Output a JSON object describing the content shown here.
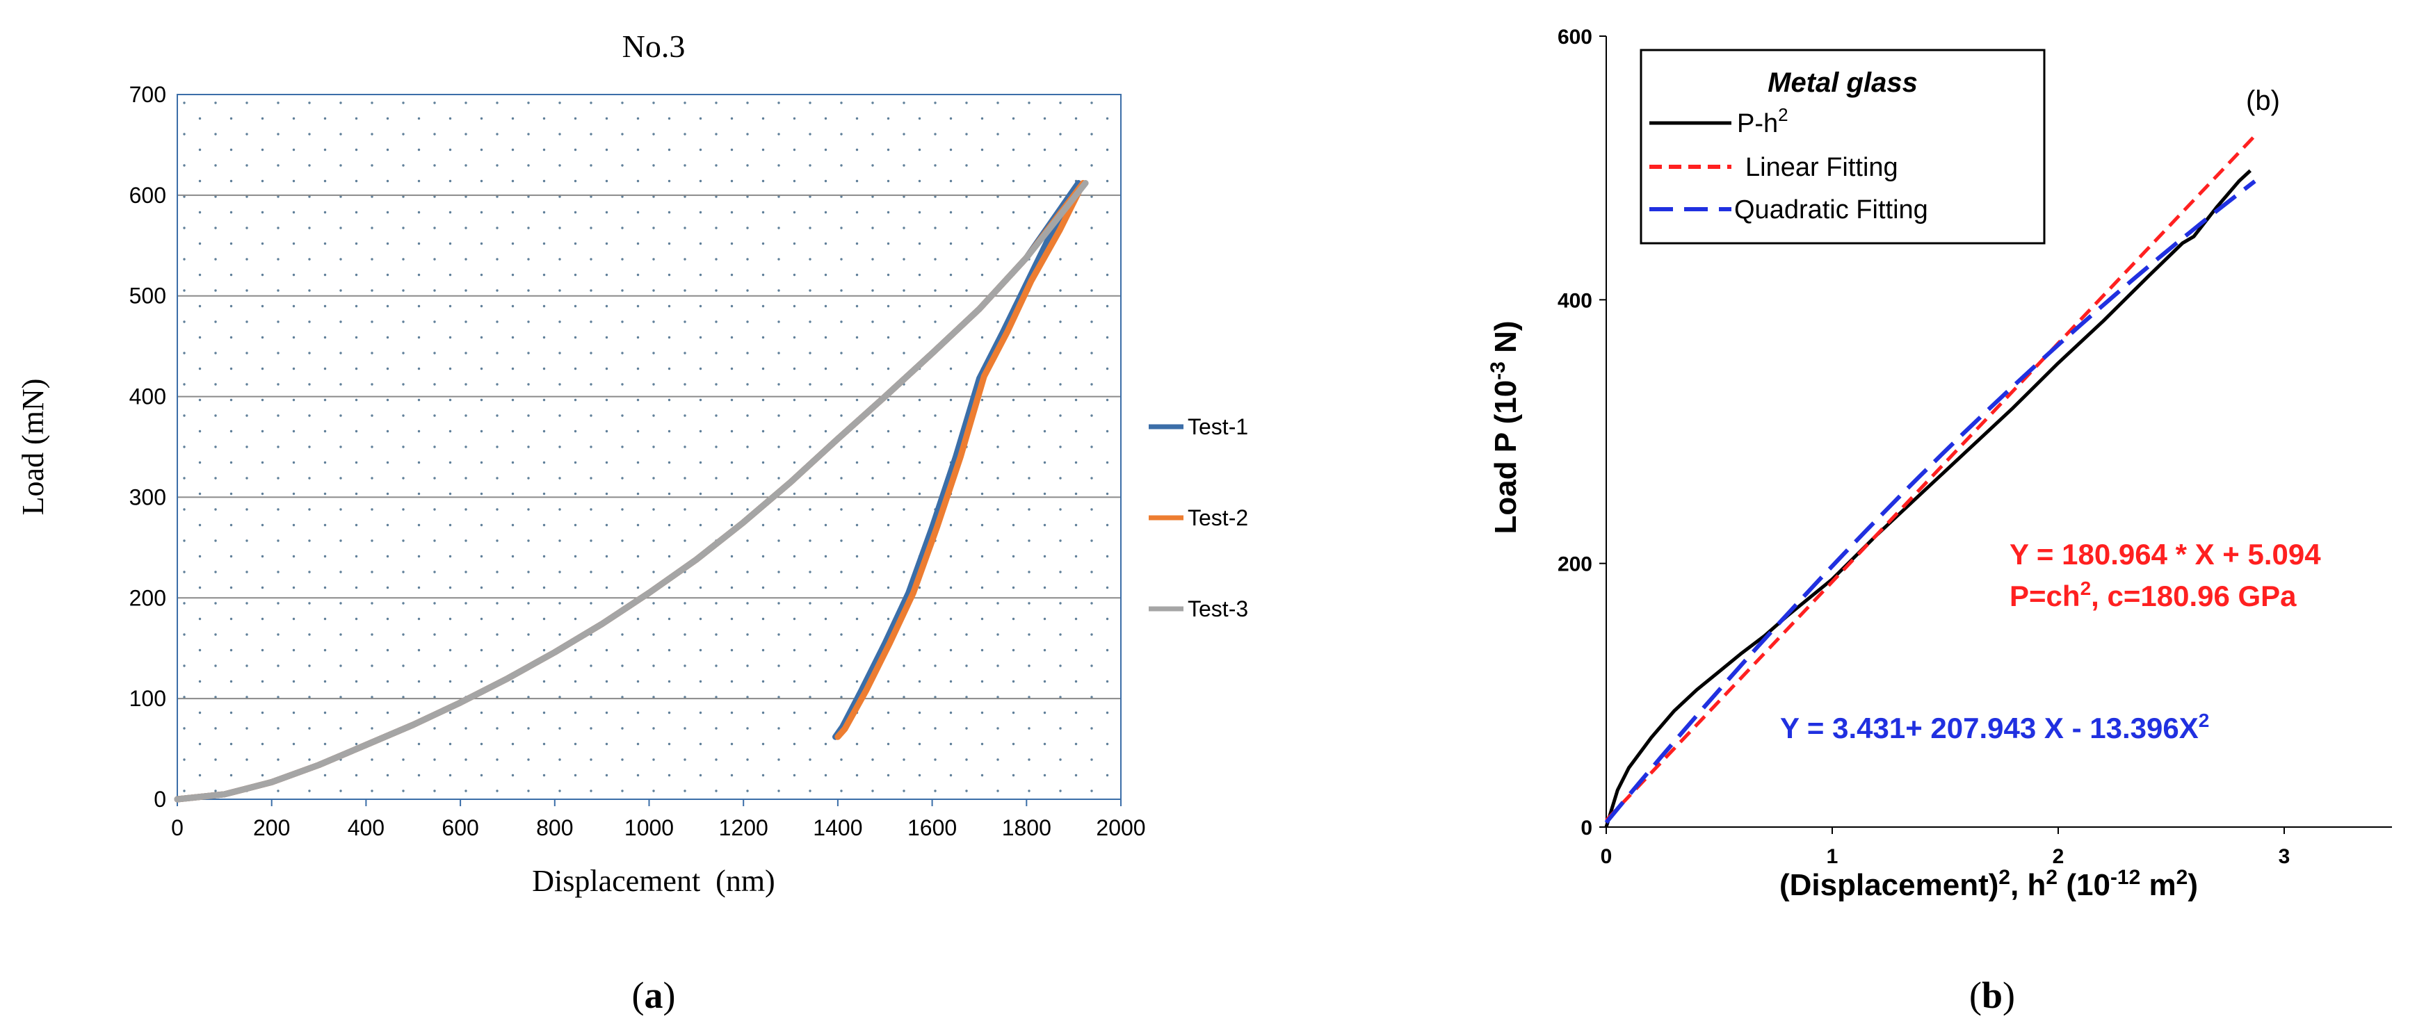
{
  "panel_a": {
    "caption_open": "(",
    "caption_letter": "a",
    "caption_close": ")",
    "chart_data": {
      "type": "line",
      "title": "No.3",
      "xlabel": "Displacement  (nm)",
      "ylabel": "Load (mN)",
      "xlim": [
        0,
        2000
      ],
      "ylim": [
        0,
        700
      ],
      "xticks": [
        0,
        200,
        400,
        600,
        800,
        1000,
        1200,
        1400,
        1600,
        1800,
        2000
      ],
      "yticks": [
        0,
        100,
        200,
        300,
        400,
        500,
        600,
        700
      ],
      "grid": "horizontal",
      "legend_position": "right",
      "series": [
        {
          "name": "Test-1",
          "color": "#3b6ea8",
          "points": [
            [
              0,
              0
            ],
            [
              100,
              5
            ],
            [
              200,
              17
            ],
            [
              300,
              34
            ],
            [
              400,
              54
            ],
            [
              500,
              74
            ],
            [
              600,
              96
            ],
            [
              700,
              120
            ],
            [
              800,
              146
            ],
            [
              900,
              174
            ],
            [
              1000,
              205
            ],
            [
              1100,
              238
            ],
            [
              1200,
              275
            ],
            [
              1300,
              315
            ],
            [
              1400,
              358
            ],
            [
              1500,
              400
            ],
            [
              1600,
              443
            ],
            [
              1700,
              487
            ],
            [
              1800,
              538
            ],
            [
              1910,
              612
            ],
            [
              1850,
              560
            ],
            [
              1800,
              512
            ],
            [
              1750,
              464
            ],
            [
              1700,
              418
            ],
            [
              1650,
              340
            ],
            [
              1600,
              270
            ],
            [
              1550,
              205
            ],
            [
              1500,
              155
            ],
            [
              1450,
              108
            ],
            [
              1410,
              72
            ],
            [
              1395,
              62
            ]
          ]
        },
        {
          "name": "Test-2",
          "color": "#ed7d31",
          "points": [
            [
              0,
              0
            ],
            [
              100,
              5
            ],
            [
              200,
              17
            ],
            [
              300,
              34
            ],
            [
              400,
              54
            ],
            [
              500,
              74
            ],
            [
              600,
              96
            ],
            [
              700,
              120
            ],
            [
              800,
              146
            ],
            [
              900,
              174
            ],
            [
              1000,
              205
            ],
            [
              1100,
              238
            ],
            [
              1200,
              275
            ],
            [
              1300,
              315
            ],
            [
              1400,
              358
            ],
            [
              1500,
              400
            ],
            [
              1600,
              443
            ],
            [
              1700,
              487
            ],
            [
              1800,
              538
            ],
            [
              1920,
              612
            ],
            [
              1870,
              565
            ],
            [
              1810,
              515
            ],
            [
              1760,
              465
            ],
            [
              1710,
              420
            ],
            [
              1660,
              340
            ],
            [
              1610,
              270
            ],
            [
              1560,
              205
            ],
            [
              1510,
              155
            ],
            [
              1460,
              108
            ],
            [
              1415,
              70
            ],
            [
              1400,
              62
            ]
          ]
        },
        {
          "name": "Test-3",
          "color": "#a5a5a5",
          "points": [
            [
              0,
              0
            ],
            [
              100,
              5
            ],
            [
              200,
              17
            ],
            [
              300,
              34
            ],
            [
              400,
              54
            ],
            [
              500,
              74
            ],
            [
              600,
              96
            ],
            [
              700,
              120
            ],
            [
              800,
              146
            ],
            [
              900,
              174
            ],
            [
              1000,
              205
            ],
            [
              1100,
              238
            ],
            [
              1200,
              275
            ],
            [
              1300,
              315
            ],
            [
              1400,
              358
            ],
            [
              1500,
              400
            ],
            [
              1600,
              443
            ],
            [
              1700,
              487
            ],
            [
              1800,
              538
            ],
            [
              1925,
              612
            ]
          ]
        }
      ]
    }
  },
  "panel_b": {
    "caption_open": "(",
    "caption_letter": "b",
    "caption_close": ")",
    "chart_data": {
      "type": "line",
      "title": "",
      "panel_tag": "(b)",
      "xlabel_parts": [
        "(Displacement)",
        "2",
        ", h",
        "2",
        " (10",
        "-12",
        " m",
        "2",
        ")"
      ],
      "ylabel_parts": [
        "Load P (10",
        "-3",
        " N)"
      ],
      "xlim": [
        0,
        3.5
      ],
      "ylim": [
        0,
        600
      ],
      "xticks": [
        0,
        1,
        2,
        3
      ],
      "yticks": [
        0,
        200,
        400,
        600
      ],
      "grid": "none",
      "legend_position": "top-left",
      "legend_title": "Metal glass",
      "legend": [
        {
          "name_parts": [
            "P-h",
            "2"
          ],
          "color": "#000000",
          "dash": "solid"
        },
        {
          "name_parts": [
            "Linear Fitting"
          ],
          "color": "#ff2020",
          "dash": "short"
        },
        {
          "name_parts": [
            "Quadratic Fitting"
          ],
          "color": "#2030e0",
          "dash": "long"
        }
      ],
      "annotations": {
        "linear_eq": "Y = 180.964 * X + 5.094",
        "linear_eq2_parts": [
          "P=ch",
          "2",
          ", c=180.96 GPa"
        ],
        "quad_eq_parts": [
          "Y = 3.431+ 207.943 X - 13.396X",
          "2"
        ]
      },
      "series": [
        {
          "name": "P-h2",
          "color": "#000000",
          "dash": "solid",
          "points": [
            [
              0,
              0
            ],
            [
              0.05,
              28
            ],
            [
              0.1,
              45
            ],
            [
              0.2,
              68
            ],
            [
              0.3,
              88
            ],
            [
              0.4,
              104
            ],
            [
              0.5,
              118
            ],
            [
              0.6,
              132
            ],
            [
              0.7,
              145
            ],
            [
              0.8,
              160
            ],
            [
              1.0,
              188
            ],
            [
              1.2,
              222
            ],
            [
              1.4,
              254
            ],
            [
              1.6,
              286
            ],
            [
              1.8,
              318
            ],
            [
              2.0,
              352
            ],
            [
              2.2,
              384
            ],
            [
              2.4,
              418
            ],
            [
              2.55,
              443
            ],
            [
              2.6,
              448
            ],
            [
              2.7,
              470
            ],
            [
              2.8,
              490
            ],
            [
              2.85,
              498
            ]
          ]
        },
        {
          "name": "Linear Fitting",
          "color": "#ff2020",
          "dash": "short",
          "points": [
            [
              0,
              5.094
            ],
            [
              2.87,
              524.46
            ]
          ]
        },
        {
          "name": "Quadratic Fitting",
          "color": "#2030e0",
          "dash": "long",
          "fn": "quadratic",
          "coef": [
            3.431,
            207.943,
            -13.396
          ],
          "range": [
            0,
            2.87
          ]
        }
      ]
    }
  }
}
